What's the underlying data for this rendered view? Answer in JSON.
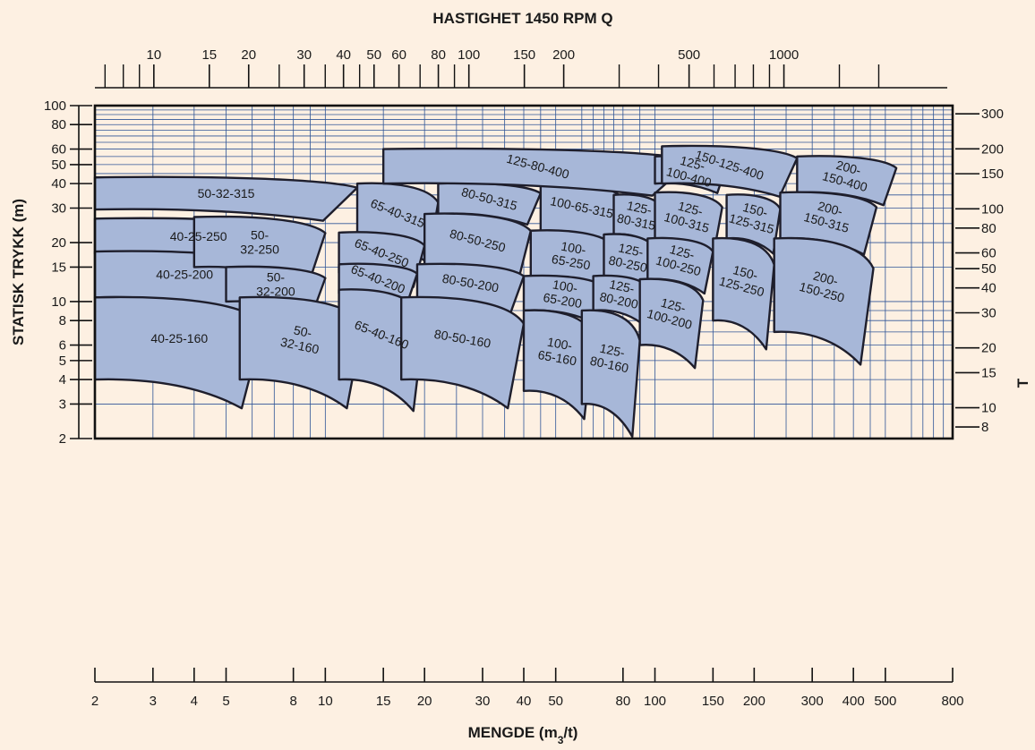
{
  "chart_data": {
    "type": "area",
    "title": "HASTIGHET 1450 RPM Q",
    "xlabel": "MENGDE (m3/t)",
    "ylabel": "STATISK TRYKK (m)",
    "right_label": "T",
    "x_scale": "log",
    "y_scale": "log",
    "xlim": [
      2,
      800
    ],
    "ylim": [
      2,
      100
    ],
    "grid": true,
    "x_ticks": [
      2,
      3,
      4,
      5,
      8,
      10,
      15,
      20,
      30,
      40,
      50,
      80,
      100,
      150,
      200,
      300,
      400,
      500,
      800
    ],
    "y_ticks": [
      2,
      3,
      4,
      5,
      6,
      8,
      10,
      15,
      20,
      30,
      40,
      50,
      60,
      80,
      100
    ],
    "top_ticks": [
      10,
      15,
      20,
      30,
      40,
      50,
      60,
      80,
      100,
      150,
      200,
      500,
      1000
    ],
    "right_ticks": [
      8,
      10,
      15,
      20,
      30,
      40,
      50,
      60,
      80,
      100,
      150,
      200,
      300
    ],
    "pump_ranges": [
      {
        "name": "50-32-315",
        "q": [
          2,
          12.5
        ],
        "h": [
          29.5,
          43
        ]
      },
      {
        "name": "40-25-250",
        "q": [
          2,
          8.5
        ],
        "h": [
          17.5,
          26.5
        ]
      },
      {
        "name": "40-25-200",
        "q": [
          2,
          7
        ],
        "h": [
          10.5,
          18
        ]
      },
      {
        "name": "40-25-160",
        "q": [
          2,
          6.5
        ],
        "h": [
          4,
          10.5
        ]
      },
      {
        "name": "50-32-250",
        "q": [
          4,
          10
        ],
        "h": [
          15,
          27
        ]
      },
      {
        "name": "50-32-200",
        "q": [
          5,
          10
        ],
        "h": [
          10,
          15
        ]
      },
      {
        "name": "50-32-160",
        "q": [
          5.5,
          13
        ],
        "h": [
          4,
          10.5
        ]
      },
      {
        "name": "65-40-315",
        "q": [
          12.5,
          22
        ],
        "h": [
          20,
          40
        ]
      },
      {
        "name": "65-40-250",
        "q": [
          11,
          20
        ],
        "h": [
          14,
          22.5
        ]
      },
      {
        "name": "65-40-200",
        "q": [
          11,
          19
        ],
        "h": [
          11,
          15.5
        ]
      },
      {
        "name": "65-40-160",
        "q": [
          11,
          20
        ],
        "h": [
          4,
          11.5
        ]
      },
      {
        "name": "80-50-315",
        "q": [
          22,
          45
        ],
        "h": [
          28,
          40
        ]
      },
      {
        "name": "80-50-250",
        "q": [
          20,
          42
        ],
        "h": [
          15,
          28
        ]
      },
      {
        "name": "80-50-200",
        "q": [
          19,
          40
        ],
        "h": [
          10,
          15.5
        ]
      },
      {
        "name": "80-50-160",
        "q": [
          17,
          40
        ],
        "h": [
          4,
          10.5
        ]
      },
      {
        "name": "100-65-315",
        "q": [
          45,
          80
        ],
        "h": [
          23,
          40
        ]
      },
      {
        "name": "100-65-250",
        "q": [
          42,
          75
        ],
        "h": [
          13,
          23
        ]
      },
      {
        "name": "100-65-200",
        "q": [
          40,
          70
        ],
        "h": [
          9,
          13.5
        ]
      },
      {
        "name": "100-65-160",
        "q": [
          40,
          65
        ],
        "h": [
          3.5,
          9
        ]
      },
      {
        "name": "125-80-400",
        "q": [
          15,
          130
        ],
        "h": [
          40,
          60
        ]
      },
      {
        "name": "125-80-315",
        "q": [
          75,
          105
        ],
        "h": [
          22,
          35
        ]
      },
      {
        "name": "125-80-250",
        "q": [
          70,
          100
        ],
        "h": [
          13,
          22
        ]
      },
      {
        "name": "125-80-200",
        "q": [
          65,
          95
        ],
        "h": [
          9,
          13.5
        ]
      },
      {
        "name": "125-80-160",
        "q": [
          60,
          90
        ],
        "h": [
          3,
          9
        ]
      },
      {
        "name": "125-100-400",
        "q": [
          100,
          165
        ],
        "h": [
          40,
          55
        ]
      },
      {
        "name": "125-100-315",
        "q": [
          100,
          160
        ],
        "h": [
          21,
          36
        ]
      },
      {
        "name": "125-100-250",
        "q": [
          95,
          150
        ],
        "h": [
          13,
          21
        ]
      },
      {
        "name": "125-100-200",
        "q": [
          90,
          140
        ],
        "h": [
          6,
          13
        ]
      },
      {
        "name": "150-125-400",
        "q": [
          105,
          270
        ],
        "h": [
          40,
          62
        ]
      },
      {
        "name": "150-125-315",
        "q": [
          165,
          240
        ],
        "h": [
          21,
          35
        ]
      },
      {
        "name": "150-125-250",
        "q": [
          150,
          230
        ],
        "h": [
          8,
          21
        ]
      },
      {
        "name": "200-150-400",
        "q": [
          270,
          540
        ],
        "h": [
          36,
          55
        ]
      },
      {
        "name": "200-150-315",
        "q": [
          240,
          470
        ],
        "h": [
          21,
          36
        ]
      },
      {
        "name": "200-150-250",
        "q": [
          230,
          460
        ],
        "h": [
          7,
          21
        ]
      }
    ]
  },
  "zone_labels": [
    {
      "lines": [
        "50-32-315"
      ],
      "rot": 0
    },
    {
      "lines": [
        "40-25-250"
      ],
      "rot": 0
    },
    {
      "lines": [
        "40-25-200"
      ],
      "rot": 0
    },
    {
      "lines": [
        "40-25-160"
      ],
      "rot": 0
    },
    {
      "lines": [
        "50-",
        "32-250"
      ],
      "rot": 0
    },
    {
      "lines": [
        "50-",
        "32-200"
      ],
      "rot": 0
    },
    {
      "lines": [
        "50-",
        "32-160"
      ],
      "rot": 12
    },
    {
      "lines": [
        "65-40-315"
      ],
      "rot": 22
    },
    {
      "lines": [
        "65-40-250"
      ],
      "rot": 22
    },
    {
      "lines": [
        "65-40-200"
      ],
      "rot": 22
    },
    {
      "lines": [
        "65-40-160"
      ],
      "rot": 22
    },
    {
      "lines": [
        "80-50-315"
      ],
      "rot": 15
    },
    {
      "lines": [
        "80-50-250"
      ],
      "rot": 15
    },
    {
      "lines": [
        "80-50-200"
      ],
      "rot": 10
    },
    {
      "lines": [
        "80-50-160"
      ],
      "rot": 10
    },
    {
      "lines": [
        "100-65-315"
      ],
      "rot": 12
    },
    {
      "lines": [
        "100-",
        "65-250"
      ],
      "rot": 10
    },
    {
      "lines": [
        "100-",
        "65-200"
      ],
      "rot": 10
    },
    {
      "lines": [
        "100-",
        "65-160"
      ],
      "rot": 10
    },
    {
      "lines": [
        "125-80-400"
      ],
      "rot": 15
    },
    {
      "lines": [
        "125-",
        "80-315"
      ],
      "rot": 12
    },
    {
      "lines": [
        "125-",
        "80-250"
      ],
      "rot": 12
    },
    {
      "lines": [
        "125-",
        "80-200"
      ],
      "rot": 12
    },
    {
      "lines": [
        "125-",
        "80-160"
      ],
      "rot": 12
    },
    {
      "lines": [
        "125-",
        "100-400"
      ],
      "rot": 15
    },
    {
      "lines": [
        "125-",
        "100-315"
      ],
      "rot": 15
    },
    {
      "lines": [
        "125-",
        "100-250"
      ],
      "rot": 15
    },
    {
      "lines": [
        "125-",
        "100-200"
      ],
      "rot": 15
    },
    {
      "lines": [
        "150-125-400"
      ],
      "rot": 18
    },
    {
      "lines": [
        "150-",
        "125-315"
      ],
      "rot": 15
    },
    {
      "lines": [
        "150-",
        "125-250"
      ],
      "rot": 15
    },
    {
      "lines": [
        "200-",
        "150-400"
      ],
      "rot": 15
    },
    {
      "lines": [
        "200-",
        "150-315"
      ],
      "rot": 15
    },
    {
      "lines": [
        "200-",
        "150-250"
      ],
      "rot": 15
    }
  ]
}
